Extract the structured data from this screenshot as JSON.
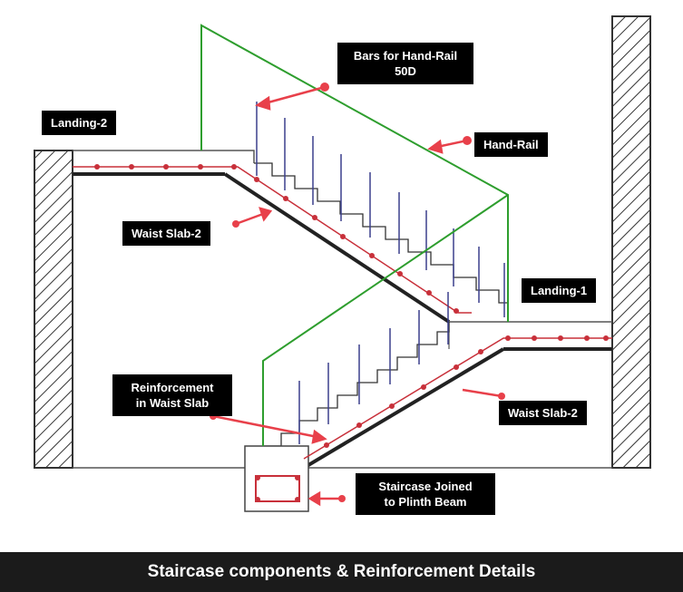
{
  "labels": {
    "bars_hand_rail_line1": "Bars for Hand-Rail",
    "bars_hand_rail_line2": "50D",
    "hand_rail": "Hand-Rail",
    "landing_2": "Landing-2",
    "landing_1": "Landing-1",
    "waist_slab_upper": "Waist Slab-2",
    "waist_slab_lower": "Waist Slab-2",
    "reinforcement_line1": "Reinforcement",
    "reinforcement_line2": "in Waist Slab",
    "plinth_line1": "Staircase Joined",
    "plinth_line2": "to Plinth Beam"
  },
  "footer": {
    "caption": "Staircase components & Reinforcement Details"
  },
  "colors": {
    "hand_rail": "#2e9e2e",
    "reinforcement": "#c8303a",
    "arrow": "#e8404a",
    "structure": "#333333",
    "rail_bars": "#3b3f8c",
    "label_bg": "#000000"
  }
}
